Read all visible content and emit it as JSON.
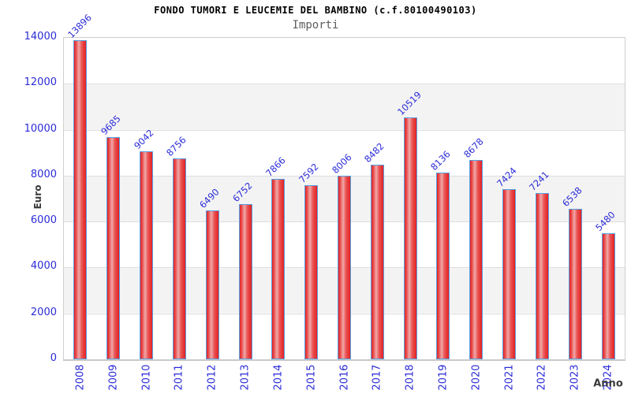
{
  "chart_data": {
    "type": "bar",
    "title": "FONDO TUMORI E LEUCEMIE DEL BAMBINO (c.f.80100490103)",
    "subtitle": "Importi",
    "xlabel": "Anno",
    "ylabel": "Euro",
    "categories": [
      "2008",
      "2009",
      "2010",
      "2011",
      "2012",
      "2013",
      "2014",
      "2015",
      "2016",
      "2017",
      "2018",
      "2019",
      "2020",
      "2021",
      "2022",
      "2023",
      "2024"
    ],
    "values": [
      13896,
      9685,
      9042,
      8756,
      6490,
      6752,
      7866,
      7592,
      8006,
      8482,
      10519,
      8136,
      8678,
      7424,
      7241,
      6538,
      5480
    ],
    "ylim": [
      0,
      14000
    ],
    "ytick_step": 2000,
    "yticks": [
      0,
      2000,
      4000,
      6000,
      8000,
      10000,
      12000,
      14000
    ],
    "grid": "horizontal",
    "legend_position": "none",
    "colors": {
      "bar_fill": "#e32121",
      "bar_highlight": "#f0a9a9",
      "bar_border": "#57a0e4",
      "tick_label": "#2b2bd8",
      "axis_label": "#3a3a3a",
      "band": "#f3f3f3",
      "gridline": "#dedede",
      "title": "#000000",
      "subtitle": "#5c5c5c"
    }
  }
}
